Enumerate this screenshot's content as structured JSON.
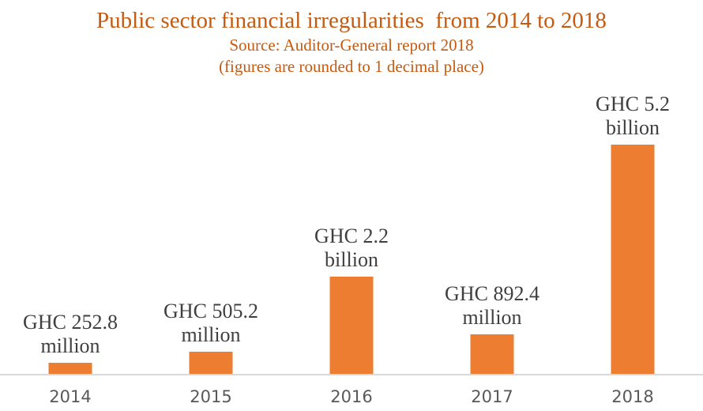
{
  "chart": {
    "title": "Public sector financial irregularities  from 2014 to 2018",
    "subtitle_source": "Source: Auditor-General report 2018",
    "subtitle_note": "(figures are rounded to 1 decimal place)",
    "colors": {
      "bar": "#ED7D31",
      "title_text": "#C55A11",
      "data_label_text": "#3F3F3F",
      "tick_label_text": "#595959",
      "axis_line": "#D9D9D9"
    }
  },
  "chart_data": {
    "type": "bar",
    "title": "Public sector financial irregularities from 2014 to 2018",
    "subtitle": "Source: Auditor-General report 2018 (figures are rounded to 1 decimal place)",
    "categories": [
      "2014",
      "2015",
      "2016",
      "2017",
      "2018"
    ],
    "values_millions_ghc": [
      252.8,
      505.2,
      2200,
      892.4,
      5200
    ],
    "data_labels": [
      [
        "GHC 252.8",
        "million"
      ],
      [
        "GHC 505.2",
        "million"
      ],
      [
        "GHC 2.2",
        "billion"
      ],
      [
        "GHC 892.4",
        "million"
      ],
      [
        "GHC 5.2",
        "billion"
      ]
    ],
    "xlabel": "",
    "ylabel": "",
    "ylim": [
      0,
      5200
    ],
    "grid": false,
    "legend": false,
    "y_axis_ticks_visible": false
  }
}
